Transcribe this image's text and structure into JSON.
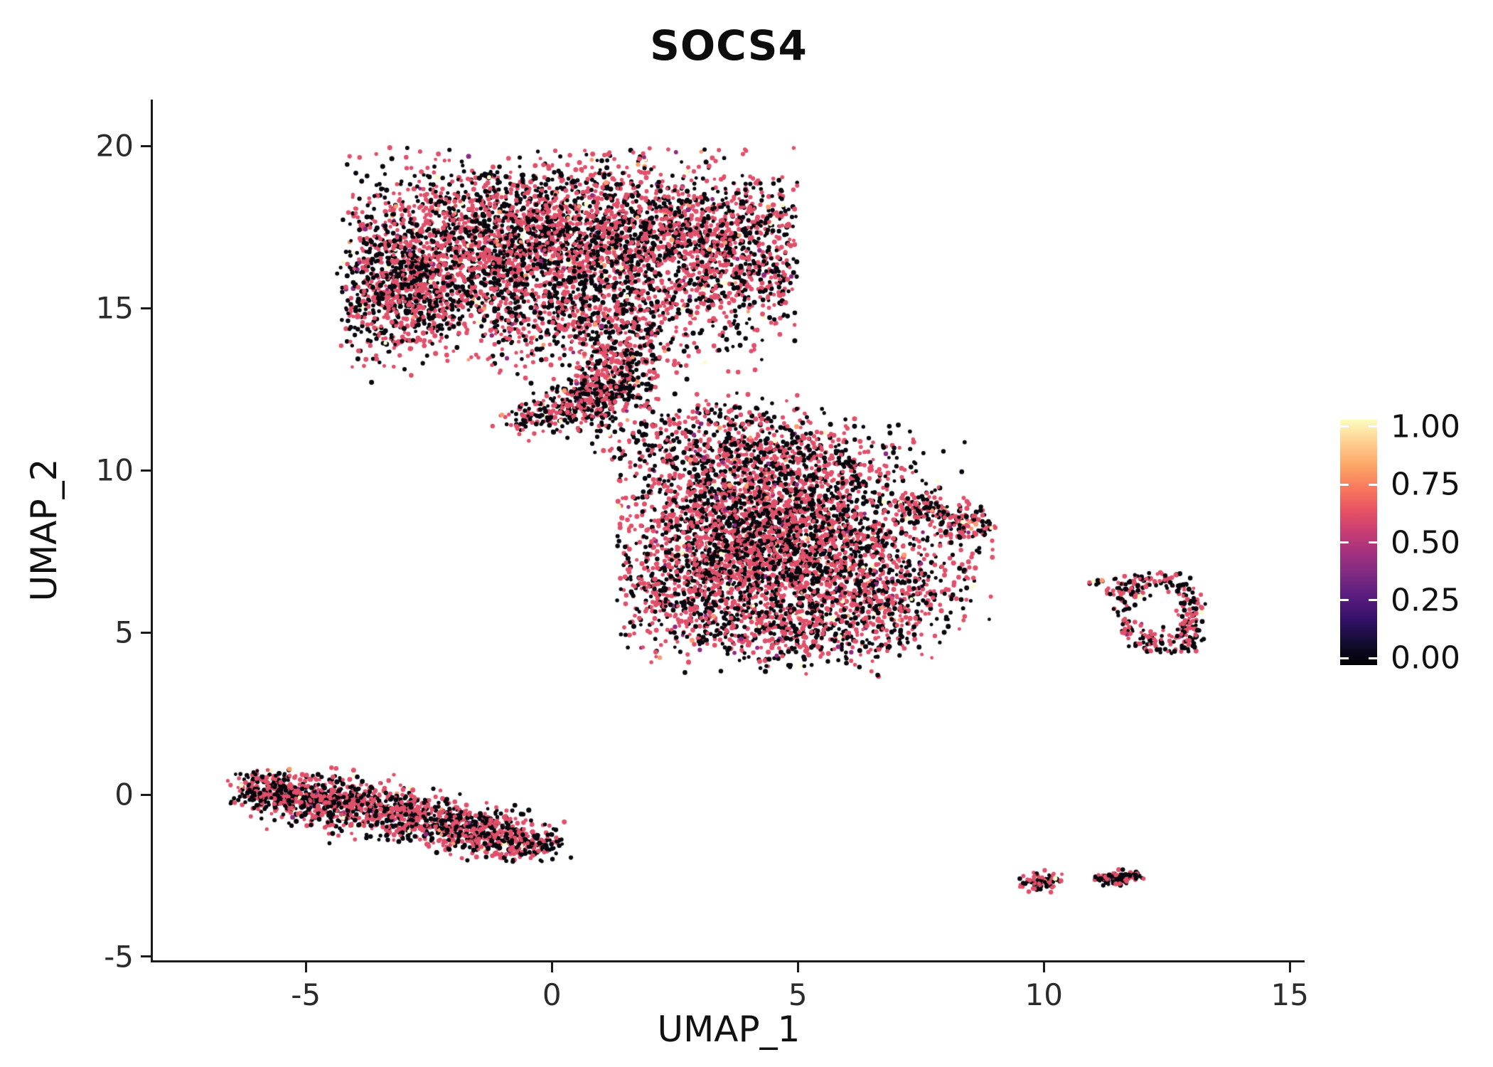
{
  "chart_data": {
    "type": "scatter",
    "title": "SOCS4",
    "xlabel": "UMAP_1",
    "ylabel": "UMAP_2",
    "x_domain": [
      -8.11,
      15.3
    ],
    "y_domain": [
      -5.11,
      21.43
    ],
    "x_ticks": [
      -5,
      0,
      5,
      10,
      15
    ],
    "y_ticks": [
      -5,
      0,
      5,
      10,
      15,
      20
    ],
    "grid": false,
    "legend_position": "right",
    "seed": 42,
    "point_radius_px": [
      2.4,
      3.6
    ],
    "color_palette": [
      {
        "hex": "#08070d",
        "weight": 0.48
      },
      {
        "hex": "#e0506a",
        "weight": 0.486
      },
      {
        "hex": "#8c2981",
        "weight": 0.012
      },
      {
        "hex": "#fb9b6f",
        "weight": 0.01
      },
      {
        "hex": "#fbfdc9",
        "weight": 0.012
      }
    ],
    "legend": {
      "gradient_stops": [
        "#000004",
        "#120d31",
        "#331067",
        "#571b7e",
        "#7c2a82",
        "#a3307e",
        "#c83e73",
        "#e95462",
        "#f97c5d",
        "#fda968",
        "#fecf92",
        "#fcfdbf"
      ],
      "ticks": [
        {
          "label": "1.00",
          "value": 1.0
        },
        {
          "label": "0.75",
          "value": 0.75
        },
        {
          "label": "0.50",
          "value": 0.5
        },
        {
          "label": "0.25",
          "value": 0.25
        },
        {
          "label": "0.00",
          "value": 0.0
        }
      ]
    },
    "clusters": [
      {
        "name": "top-lobe-left",
        "type": "gaussian",
        "cx": -2.1,
        "cy": 16.4,
        "sx": 1.4,
        "sy": 1.35,
        "n": 1500,
        "clip": [
          -4.2,
          5.0,
          13.2,
          19.95
        ]
      },
      {
        "name": "top-lobe-center",
        "type": "gaussian",
        "cx": -0.1,
        "cy": 17.6,
        "sx": 1.15,
        "sy": 1.0,
        "n": 900,
        "clip": [
          -4.2,
          5.0,
          13.2,
          19.95
        ]
      },
      {
        "name": "top-lobe-right",
        "type": "gaussian",
        "cx": 2.3,
        "cy": 17.1,
        "sx": 1.35,
        "sy": 1.25,
        "n": 1050,
        "clip": [
          -4.2,
          5.0,
          13.2,
          19.95
        ]
      },
      {
        "name": "top-lobe-far-right",
        "type": "gaussian",
        "cx": 3.9,
        "cy": 16.5,
        "sx": 0.8,
        "sy": 1.25,
        "n": 500,
        "clip": [
          -4.2,
          4.95,
          13.2,
          19.95
        ]
      },
      {
        "name": "top-left-bulge",
        "type": "gaussian",
        "cx": -3.15,
        "cy": 15.4,
        "sx": 0.7,
        "sy": 0.95,
        "n": 400,
        "clip": [
          -4.3,
          5.0,
          13.0,
          19.95
        ]
      },
      {
        "name": "top-lower-fill",
        "type": "gaussian",
        "cx": 0.8,
        "cy": 14.7,
        "sx": 1.15,
        "sy": 0.85,
        "n": 550,
        "clip": [
          -4.2,
          5.0,
          12.8,
          19.95
        ]
      },
      {
        "name": "top-halo",
        "type": "gaussian",
        "cx": 0.2,
        "cy": 16.9,
        "sx": 2.5,
        "sy": 1.9,
        "n": 320,
        "clip": [
          -4.4,
          5.05,
          12.6,
          19.95
        ]
      },
      {
        "name": "neck-main",
        "type": "segment",
        "x1": 1.7,
        "y1": 13.9,
        "x2": 0.2,
        "y2": 11.4,
        "spread": 0.42,
        "n": 460,
        "clip": [
          -1.2,
          3.2,
          11.0,
          14.6
        ]
      },
      {
        "name": "neck-spur",
        "type": "segment",
        "x1": -0.7,
        "y1": 11.5,
        "x2": 1.9,
        "y2": 12.7,
        "spread": 0.28,
        "n": 210,
        "clip": [
          -1.4,
          3.0,
          10.9,
          13.6
        ]
      },
      {
        "name": "mid-core",
        "type": "gaussian",
        "cx": 4.0,
        "cy": 8.6,
        "sx": 1.55,
        "sy": 1.25,
        "n": 1800,
        "clip": [
          1.3,
          9.0,
          4.0,
          11.9
        ]
      },
      {
        "name": "mid-lower",
        "type": "gaussian",
        "cx": 5.3,
        "cy": 6.9,
        "sx": 1.5,
        "sy": 1.15,
        "n": 1250,
        "clip": [
          1.3,
          9.0,
          3.95,
          11.9
        ]
      },
      {
        "name": "mid-left-lower",
        "type": "gaussian",
        "cx": 3.1,
        "cy": 6.2,
        "sx": 1.0,
        "sy": 0.95,
        "n": 500,
        "clip": [
          1.3,
          9.0,
          4.0,
          11.9
        ]
      },
      {
        "name": "mid-top",
        "type": "gaussian",
        "cx": 4.9,
        "cy": 10.2,
        "sx": 1.3,
        "sy": 0.7,
        "n": 420,
        "clip": [
          1.3,
          9.0,
          4.0,
          11.9
        ]
      },
      {
        "name": "mid-right-arm",
        "type": "segment",
        "x1": 7.2,
        "y1": 8.9,
        "x2": 8.85,
        "y2": 8.2,
        "spread": 0.28,
        "n": 220,
        "clip": [
          6.5,
          9.05,
          7.2,
          9.6
        ]
      },
      {
        "name": "mid-bridge-scatter",
        "type": "gaussian",
        "cx": 2.9,
        "cy": 11.2,
        "sx": 1.25,
        "sy": 0.65,
        "n": 260,
        "clip": [
          0.8,
          5.5,
          10.2,
          12.4
        ]
      },
      {
        "name": "mid-bottom-tip",
        "type": "gaussian",
        "cx": 4.7,
        "cy": 4.9,
        "sx": 0.9,
        "sy": 0.5,
        "n": 260,
        "clip": [
          2.5,
          7.0,
          3.7,
          6.5
        ]
      },
      {
        "name": "mid-right-bulge",
        "type": "gaussian",
        "cx": 6.7,
        "cy": 5.9,
        "sx": 0.8,
        "sy": 0.85,
        "n": 330,
        "clip": [
          4.5,
          8.6,
          3.9,
          8.5
        ]
      },
      {
        "name": "strip-main",
        "type": "segment",
        "x1": -5.9,
        "y1": 0.2,
        "x2": -0.5,
        "y2": -1.45,
        "spread": 0.38,
        "n": 1550,
        "clip": [
          -6.5,
          0.4,
          -2.05,
          0.85
        ]
      },
      {
        "name": "strip-left-cap",
        "type": "gaussian",
        "cx": -5.95,
        "cy": 0.15,
        "sx": 0.35,
        "sy": 0.3,
        "n": 130,
        "clip": [
          -6.6,
          -5.2,
          -0.7,
          0.8
        ]
      },
      {
        "name": "strip-right-tail",
        "type": "gaussian",
        "cx": -0.35,
        "cy": -1.55,
        "sx": 0.35,
        "sy": 0.25,
        "n": 90,
        "clip": [
          -1.2,
          0.45,
          -2.1,
          -0.9
        ]
      },
      {
        "name": "islet-ring",
        "type": "ring",
        "cx": 12.3,
        "cy": 5.7,
        "r": 0.72,
        "yscale": 1.5,
        "spread": 0.14,
        "n": 240,
        "clip": [
          11.3,
          13.3,
          4.35,
          6.85
        ]
      },
      {
        "name": "islet-left-blob",
        "type": "gaussian",
        "cx": 11.7,
        "cy": 6.35,
        "sx": 0.22,
        "sy": 0.18,
        "n": 45,
        "clip": [
          11.2,
          12.2,
          5.9,
          6.8
        ]
      },
      {
        "name": "islet-lower-tail",
        "type": "gaussian",
        "cx": 13.0,
        "cy": 4.85,
        "sx": 0.16,
        "sy": 0.22,
        "n": 40,
        "clip": [
          12.6,
          13.3,
          4.4,
          5.4
        ]
      },
      {
        "name": "islet-outlier-dots",
        "type": "gaussian",
        "cx": 11.1,
        "cy": 6.5,
        "sx": 0.14,
        "sy": 0.09,
        "n": 9,
        "clip": [
          10.8,
          11.5,
          6.2,
          6.8
        ]
      },
      {
        "name": "micro-cluster-left",
        "type": "gaussian",
        "cx": 9.95,
        "cy": -2.68,
        "sx": 0.2,
        "sy": 0.13,
        "n": 90,
        "clip": [
          9.5,
          10.45,
          -3.05,
          -2.3
        ]
      },
      {
        "name": "micro-cluster-right",
        "type": "segment",
        "x1": 11.2,
        "y1": -2.62,
        "x2": 11.85,
        "y2": -2.5,
        "spread": 0.11,
        "n": 115,
        "clip": [
          10.95,
          12.1,
          -2.95,
          -2.2
        ]
      },
      {
        "name": "stray-dot",
        "type": "gaussian",
        "cx": 6.62,
        "cy": 3.7,
        "sx": 0.04,
        "sy": 0.04,
        "n": 2,
        "clip": [
          6.4,
          6.9,
          3.5,
          3.9
        ]
      }
    ]
  }
}
